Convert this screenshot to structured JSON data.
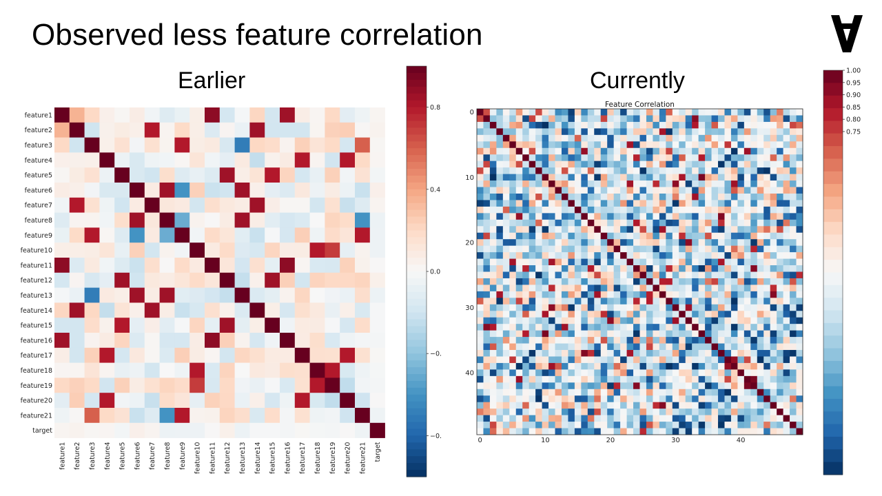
{
  "slide": {
    "title": "Observed less feature correlation",
    "left_title": "Earlier",
    "right_title": "Currently",
    "logo_icon": "inverted-a-logo-icon"
  },
  "colors": {
    "palette_RdBu_r": [
      "#053061",
      "#2166ac",
      "#4393c3",
      "#92c5de",
      "#d1e5f0",
      "#f7f7f7",
      "#fddbc7",
      "#f4a582",
      "#d6604d",
      "#b2182b",
      "#67001f"
    ]
  },
  "chart_data": [
    {
      "type": "heatmap",
      "title": "",
      "labels": [
        "feature1",
        "feature2",
        "feature3",
        "feature4",
        "feature5",
        "feature6",
        "feature7",
        "feature8",
        "feature9",
        "feature10",
        "feature11",
        "feature12",
        "feature13",
        "feature14",
        "feature15",
        "feature16",
        "feature17",
        "feature18",
        "feature19",
        "feature20",
        "feature21",
        "target"
      ],
      "colorbar_ticks": [
        "0.8",
        "0.4",
        "0.0",
        "−0.",
        "−0."
      ],
      "vmin": -1,
      "vmax": 1,
      "groups": [
        [
          0,
          10,
          15
        ],
        [
          1,
          6,
          13
        ],
        [
          2,
          8,
          20
        ],
        [
          3,
          16,
          19
        ],
        [
          4,
          11,
          14
        ],
        [
          5,
          7,
          12
        ],
        [
          9,
          17,
          18
        ]
      ],
      "group_corr": [
        0.9,
        0.85,
        0.8,
        0.8,
        0.85,
        0.85,
        0.8
      ],
      "approx_values": {
        "feature1-feature2": 0.35,
        "feature1-feature11": 0.9,
        "feature1-feature16": 0.85,
        "feature2-feature7": 0.8,
        "feature2-feature14": 0.85,
        "feature3-feature9": 0.8,
        "feature3-feature13": -0.7,
        "feature3-feature21": 0.6,
        "feature4-feature17": 0.8,
        "feature4-feature20": 0.8,
        "feature5-feature12": 0.85,
        "feature5-feature15": 0.8,
        "feature6-feature9": -0.6,
        "feature8-feature9": -0.5,
        "feature8-feature21": -0.6,
        "feature10-feature18": 0.8,
        "feature10-feature19": 0.7
      },
      "diagonal": 1.0
    },
    {
      "type": "heatmap",
      "title": "Feature Correlation",
      "size": 50,
      "x_ticks": [
        0,
        10,
        20,
        30,
        40
      ],
      "y_ticks": [
        0,
        10,
        20,
        30,
        40
      ],
      "colorbar_ticks": [
        "1.00",
        "0.95",
        "0.90",
        "0.85",
        "0.80",
        "0.75"
      ],
      "diagonal": 1.0,
      "off_diagonal": "mostly weak correlations between -0.5 and 0.5 with a few strong negative blocks (rows 13-16, 33-35, 41-46)"
    }
  ]
}
